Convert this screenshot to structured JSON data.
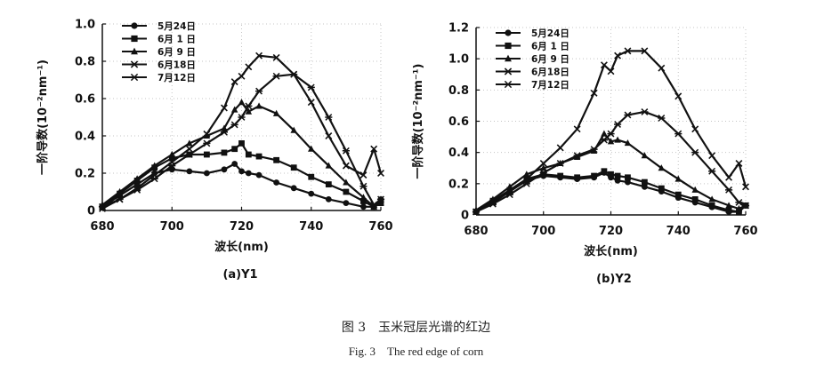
{
  "figure": {
    "caption_cn": "图 3　玉米冠层光谱的红边",
    "caption_en": "Fig. 3　The red edge of corn"
  },
  "chart_data": [
    {
      "type": "line",
      "panel_label": "(a)Y1",
      "xlabel": "波长(nm)",
      "ylabel": "一阶导数(10⁻²nm⁻¹)",
      "xlim": [
        680,
        760
      ],
      "ylim": [
        0,
        1.0
      ],
      "xticks": [
        680,
        700,
        720,
        740,
        760
      ],
      "yticks": [
        0,
        0.2,
        0.4,
        0.6,
        0.8,
        1.0
      ],
      "ytick_labels": [
        "0",
        "0.2",
        "0.4",
        "0.6",
        "0.8",
        "1.0"
      ],
      "grid": true,
      "legend_position": "top-left",
      "series": [
        {
          "name": "5月24日",
          "marker": "circle",
          "x": [
            680,
            685,
            690,
            695,
            700,
            705,
            710,
            715,
            718,
            720,
            722,
            725,
            730,
            735,
            740,
            745,
            750,
            755,
            758,
            760
          ],
          "y": [
            0.02,
            0.08,
            0.14,
            0.2,
            0.22,
            0.21,
            0.2,
            0.22,
            0.25,
            0.21,
            0.2,
            0.19,
            0.15,
            0.12,
            0.09,
            0.06,
            0.04,
            0.02,
            0.02,
            0.06
          ]
        },
        {
          "name": "6月 1 日",
          "marker": "square",
          "x": [
            680,
            685,
            690,
            695,
            700,
            705,
            710,
            715,
            718,
            720,
            722,
            725,
            730,
            735,
            740,
            745,
            750,
            755,
            758,
            760
          ],
          "y": [
            0.02,
            0.09,
            0.16,
            0.23,
            0.28,
            0.3,
            0.3,
            0.31,
            0.33,
            0.36,
            0.3,
            0.29,
            0.27,
            0.23,
            0.18,
            0.14,
            0.1,
            0.05,
            0.02,
            0.04
          ]
        },
        {
          "name": "6月 9 日",
          "marker": "triangle",
          "x": [
            680,
            685,
            690,
            695,
            700,
            705,
            710,
            715,
            718,
            720,
            722,
            725,
            730,
            735,
            740,
            745,
            750,
            755,
            758,
            760
          ],
          "y": [
            0.03,
            0.1,
            0.17,
            0.24,
            0.3,
            0.36,
            0.4,
            0.44,
            0.54,
            0.58,
            0.53,
            0.56,
            0.52,
            0.43,
            0.33,
            0.24,
            0.15,
            0.07,
            0.02,
            0.04
          ]
        },
        {
          "name": "6月18日",
          "marker": "x",
          "x": [
            680,
            685,
            690,
            695,
            700,
            705,
            710,
            715,
            718,
            720,
            722,
            725,
            730,
            735,
            740,
            745,
            750,
            755,
            758,
            760
          ],
          "y": [
            0.01,
            0.06,
            0.12,
            0.19,
            0.26,
            0.33,
            0.41,
            0.55,
            0.69,
            0.72,
            0.77,
            0.83,
            0.82,
            0.73,
            0.58,
            0.4,
            0.24,
            0.19,
            0.33,
            0.2
          ]
        },
        {
          "name": "7月12日",
          "marker": "star",
          "x": [
            680,
            685,
            690,
            695,
            700,
            705,
            710,
            715,
            718,
            720,
            722,
            725,
            730,
            735,
            740,
            745,
            750,
            755,
            758,
            760
          ],
          "y": [
            0.02,
            0.06,
            0.11,
            0.17,
            0.24,
            0.3,
            0.36,
            0.42,
            0.46,
            0.5,
            0.56,
            0.64,
            0.72,
            0.73,
            0.66,
            0.5,
            0.32,
            0.13,
            0.03,
            0.06
          ]
        }
      ]
    },
    {
      "type": "line",
      "panel_label": "(b)Y2",
      "xlabel": "波长(nm)",
      "ylabel": "一阶导数(10⁻²nm⁻¹)",
      "xlim": [
        680,
        760
      ],
      "ylim": [
        0,
        1.2
      ],
      "xticks": [
        680,
        700,
        720,
        740,
        760
      ],
      "yticks": [
        0,
        0.2,
        0.4,
        0.6,
        0.8,
        1.0,
        1.2
      ],
      "ytick_labels": [
        "0",
        "0.2",
        "0.4",
        "0.6",
        "0.8",
        "1.0",
        "1.2"
      ],
      "grid": true,
      "legend_position": "top-left",
      "series": [
        {
          "name": "5月24日",
          "marker": "circle",
          "x": [
            680,
            685,
            690,
            695,
            700,
            705,
            710,
            715,
            718,
            720,
            722,
            725,
            730,
            735,
            740,
            745,
            750,
            755,
            758,
            760
          ],
          "y": [
            0.02,
            0.08,
            0.15,
            0.22,
            0.25,
            0.24,
            0.23,
            0.24,
            0.27,
            0.24,
            0.22,
            0.21,
            0.18,
            0.15,
            0.11,
            0.08,
            0.05,
            0.02,
            0.02,
            0.06
          ]
        },
        {
          "name": "6月 1 日",
          "marker": "square",
          "x": [
            680,
            685,
            690,
            695,
            700,
            705,
            710,
            715,
            718,
            720,
            722,
            725,
            730,
            735,
            740,
            745,
            750,
            755,
            758,
            760
          ],
          "y": [
            0.02,
            0.09,
            0.16,
            0.23,
            0.26,
            0.25,
            0.24,
            0.25,
            0.28,
            0.26,
            0.25,
            0.24,
            0.21,
            0.17,
            0.13,
            0.1,
            0.06,
            0.03,
            0.02,
            0.06
          ]
        },
        {
          "name": "6月 9 日",
          "marker": "triangle",
          "x": [
            680,
            685,
            690,
            695,
            700,
            705,
            710,
            715,
            718,
            720,
            722,
            725,
            730,
            735,
            740,
            745,
            750,
            755,
            758,
            760
          ],
          "y": [
            0.03,
            0.1,
            0.18,
            0.26,
            0.3,
            0.33,
            0.37,
            0.41,
            0.52,
            0.47,
            0.48,
            0.46,
            0.38,
            0.3,
            0.23,
            0.16,
            0.1,
            0.06,
            0.04,
            0.06
          ]
        },
        {
          "name": "6月18日",
          "marker": "x",
          "x": [
            680,
            685,
            690,
            695,
            700,
            705,
            710,
            715,
            718,
            720,
            722,
            725,
            730,
            735,
            740,
            745,
            750,
            755,
            758,
            760
          ],
          "y": [
            0.02,
            0.08,
            0.15,
            0.23,
            0.33,
            0.43,
            0.55,
            0.78,
            0.96,
            0.92,
            1.02,
            1.05,
            1.05,
            0.94,
            0.76,
            0.55,
            0.38,
            0.24,
            0.33,
            0.18
          ]
        },
        {
          "name": "7月12日",
          "marker": "star",
          "x": [
            680,
            685,
            690,
            695,
            700,
            705,
            710,
            715,
            718,
            720,
            722,
            725,
            730,
            735,
            740,
            745,
            750,
            755,
            758,
            760
          ],
          "y": [
            0.02,
            0.07,
            0.13,
            0.2,
            0.27,
            0.33,
            0.38,
            0.42,
            0.48,
            0.52,
            0.58,
            0.64,
            0.66,
            0.62,
            0.52,
            0.4,
            0.28,
            0.16,
            0.08,
            0.06
          ]
        }
      ]
    }
  ]
}
